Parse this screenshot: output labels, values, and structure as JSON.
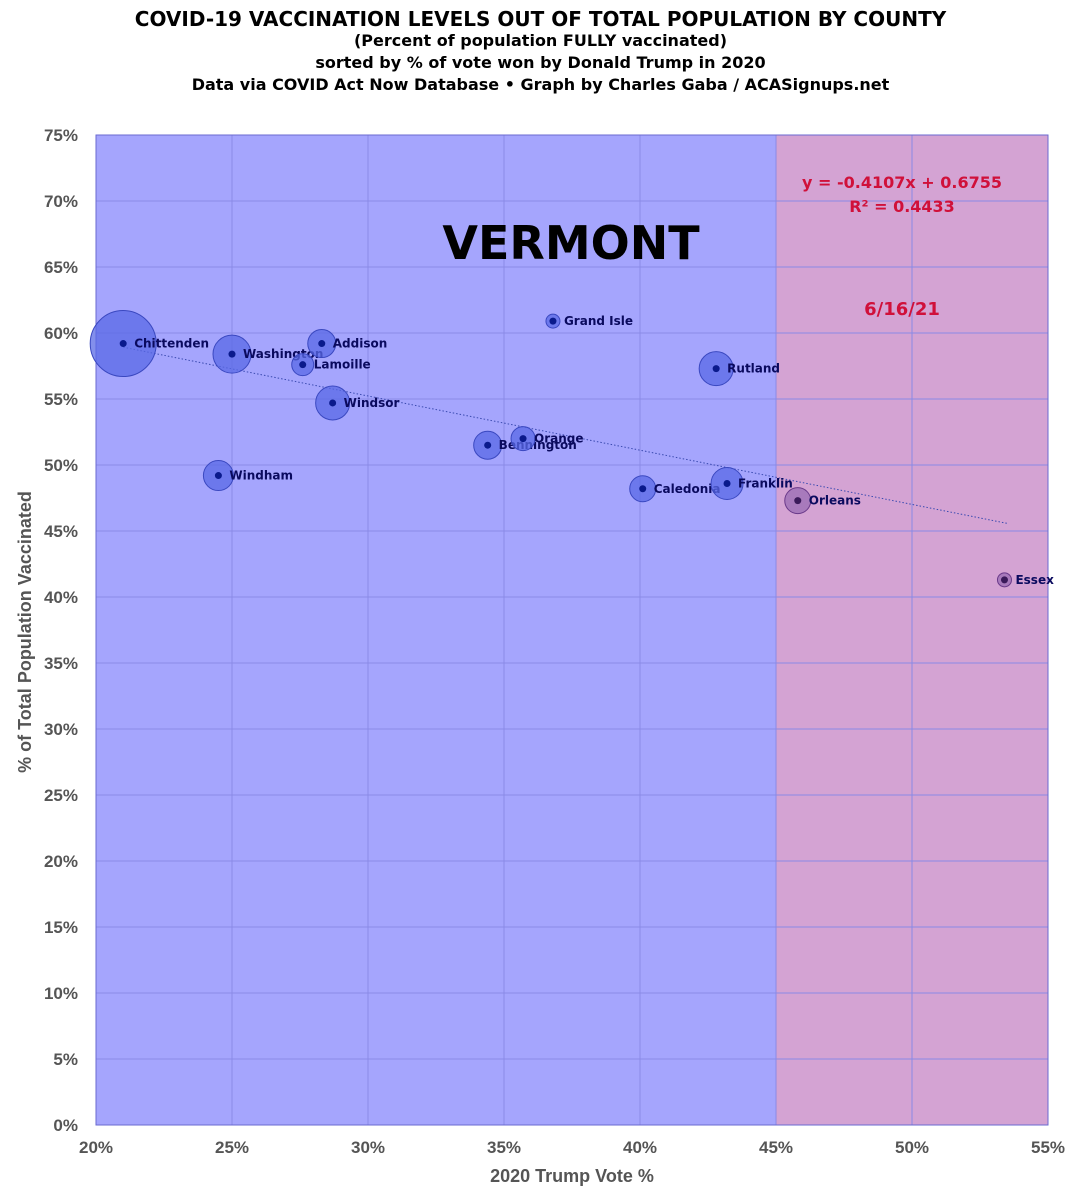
{
  "header": {
    "title": "COVID-19 VACCINATION LEVELS OUT OF TOTAL POPULATION BY COUNTY",
    "subtitle1": "(Percent of population FULLY vaccinated)",
    "subtitle2": "sorted by % of vote won by Donald Trump in 2020",
    "subtitle3": "Data via COVID Act Now Database • Graph by Charles Gaba / ACASignups.net"
  },
  "annotations": {
    "state": "VERMONT",
    "equation": "y = -0.4107x + 0.6755",
    "r_squared": "R² = 0.4433",
    "date": "6/16/21"
  },
  "colors": {
    "blue_region": "#a5a5fd",
    "red_region": "#d4a3d3",
    "bubble_blue": "#5a6ae6",
    "bubble_purple": "#9a6cb4",
    "dot": "#0a1a8c",
    "label": "#0a0a5e",
    "accent_red": "#d0103a"
  },
  "chart_data": {
    "type": "scatter",
    "xlabel": "2020 Trump Vote %",
    "ylabel": "% of Total Population Vaccinated",
    "xlim": [
      0.2,
      0.55
    ],
    "ylim": [
      0.0,
      0.75
    ],
    "x_ticks": [
      "20%",
      "25%",
      "30%",
      "35%",
      "40%",
      "45%",
      "50%",
      "55%"
    ],
    "y_ticks": [
      "0%",
      "5%",
      "10%",
      "15%",
      "20%",
      "25%",
      "30%",
      "35%",
      "40%",
      "45%",
      "50%",
      "55%",
      "60%",
      "65%",
      "70%",
      "75%"
    ],
    "grid": true,
    "regions": [
      {
        "from": 0.2,
        "to": 0.45,
        "color": "#a5a5fd"
      },
      {
        "from": 0.45,
        "to": 0.55,
        "color": "#d4a3d3"
      }
    ],
    "trendline": {
      "slope": -0.4107,
      "intercept": 0.6755,
      "x_from": 0.21,
      "x_to": 0.535
    },
    "points": [
      {
        "label": "Chittenden",
        "x": 0.21,
        "y": 0.592,
        "r": 33
      },
      {
        "label": "Windham",
        "x": 0.245,
        "y": 0.492,
        "r": 15
      },
      {
        "label": "Washington",
        "x": 0.25,
        "y": 0.584,
        "r": 19
      },
      {
        "label": "Lamoille",
        "x": 0.276,
        "y": 0.576,
        "r": 11
      },
      {
        "label": "Addison",
        "x": 0.283,
        "y": 0.592,
        "r": 14
      },
      {
        "label": "Windsor",
        "x": 0.287,
        "y": 0.547,
        "r": 17
      },
      {
        "label": "Bennington",
        "x": 0.344,
        "y": 0.515,
        "r": 14
      },
      {
        "label": "Orange",
        "x": 0.357,
        "y": 0.52,
        "r": 12
      },
      {
        "label": "Grand Isle",
        "x": 0.368,
        "y": 0.609,
        "r": 7
      },
      {
        "label": "Caledonia",
        "x": 0.401,
        "y": 0.482,
        "r": 13
      },
      {
        "label": "Rutland",
        "x": 0.428,
        "y": 0.573,
        "r": 17
      },
      {
        "label": "Franklin",
        "x": 0.432,
        "y": 0.486,
        "r": 16
      },
      {
        "label": "Orleans",
        "x": 0.458,
        "y": 0.473,
        "r": 13
      },
      {
        "label": "Essex",
        "x": 0.534,
        "y": 0.413,
        "r": 7
      }
    ]
  }
}
